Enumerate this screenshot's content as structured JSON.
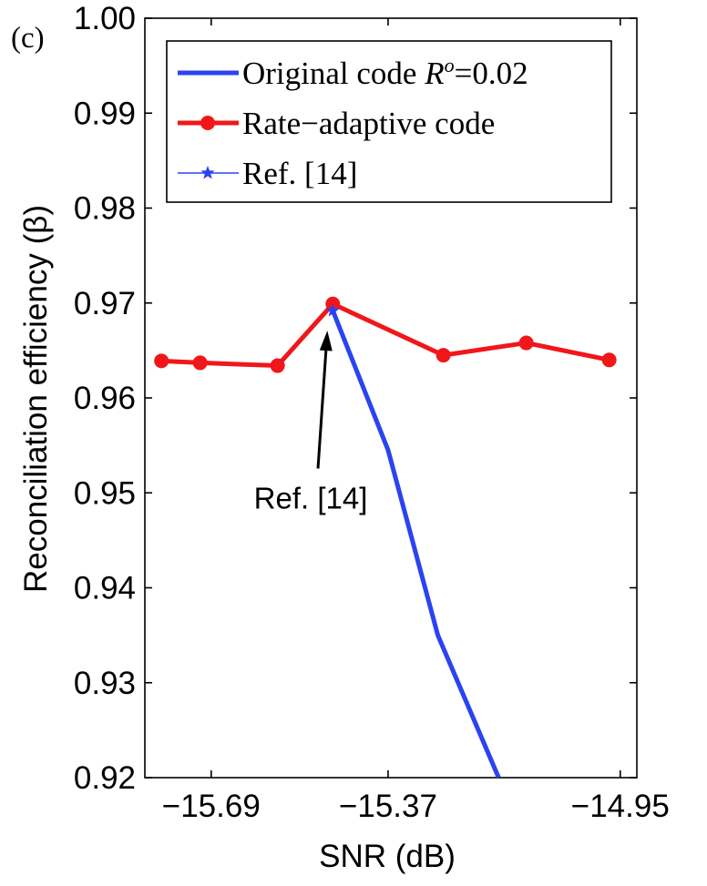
{
  "chart_data": {
    "type": "line",
    "panel_label": "(c)",
    "xlabel": "SNR (dB)",
    "ylabel": "Reconciliation efficiency (β)",
    "xlim": [
      -15.81,
      -14.92
    ],
    "ylim": [
      0.92,
      1.0
    ],
    "xticks": [
      -15.69,
      -15.37,
      -14.95
    ],
    "xtick_labels": [
      "−15.69",
      "−15.37",
      "−14.95"
    ],
    "yticks": [
      0.92,
      0.93,
      0.94,
      0.95,
      0.96,
      0.97,
      0.98,
      0.99,
      1.0
    ],
    "ytick_labels": [
      "0.92",
      "0.93",
      "0.94",
      "0.95",
      "0.96",
      "0.97",
      "0.98",
      "0.99",
      "1.00"
    ],
    "grid": false,
    "legend_position": "top-right",
    "series": [
      {
        "name": "Original code Rᵒ=0.02",
        "legend_label": "Original code ",
        "legend_italic": "R",
        "legend_sup": "o",
        "legend_tail": "=0.02",
        "color": "#2b43f0",
        "marker": "none",
        "x": [
          -15.47,
          -15.37,
          -15.28,
          -15.17
        ],
        "y": [
          0.9692,
          0.9545,
          0.935,
          0.92
        ]
      },
      {
        "name": "Rate−adaptive code",
        "legend_label": "Rate−adaptive code",
        "color": "#f0171a",
        "marker": "circle",
        "x": [
          -15.78,
          -15.71,
          -15.57,
          -15.47,
          -15.27,
          -15.12,
          -14.97
        ],
        "y": [
          0.9639,
          0.9637,
          0.9634,
          0.9699,
          0.9645,
          0.9658,
          0.964
        ]
      },
      {
        "name": "Ref. [14]",
        "legend_label": "Ref. [14]",
        "color": "#2b43f0",
        "marker": "star",
        "x": [
          -15.47
        ],
        "y": [
          0.9692
        ]
      }
    ],
    "annotation": {
      "text": "Ref. [14]",
      "x": -15.47,
      "y": 0.9692,
      "text_x": -15.51,
      "text_y": 0.9495
    }
  }
}
